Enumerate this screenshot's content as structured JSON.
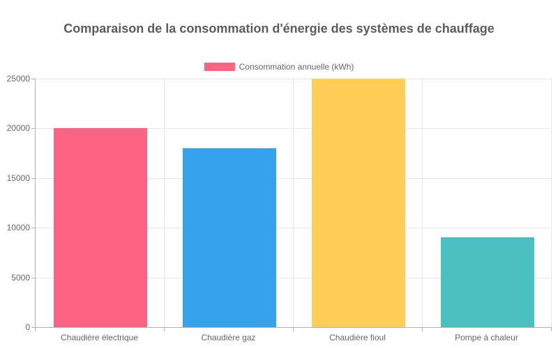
{
  "chart_data": {
    "type": "bar",
    "title": "Comparaison de la consommation d'énergie des systèmes de chauffage",
    "legend": {
      "label": "Consommation annuelle (kWh)",
      "color": "#FF6384",
      "position": "top"
    },
    "categories": [
      "Chaudière électrique",
      "Chaudière gaz",
      "Chaudière fioul",
      "Pompe à chaleur"
    ],
    "series": [
      {
        "name": "Consommation annuelle (kWh)",
        "values": [
          20000,
          18000,
          25000,
          9000
        ],
        "colors": [
          "#FF6384",
          "#36A2EB",
          "#FFCE56",
          "#4BC0C0"
        ]
      }
    ],
    "xlabel": "",
    "ylabel": "",
    "ylim": [
      0,
      25000
    ],
    "yticks": [
      0,
      5000,
      10000,
      15000,
      20000,
      25000
    ],
    "grid": true,
    "legend_position": "top"
  },
  "colors": {
    "background": "#ffffff",
    "grid": "#e6e6e6",
    "axis": "#b1b1b1",
    "tick_text": "#666666",
    "title_text": "#5c5c5c"
  }
}
